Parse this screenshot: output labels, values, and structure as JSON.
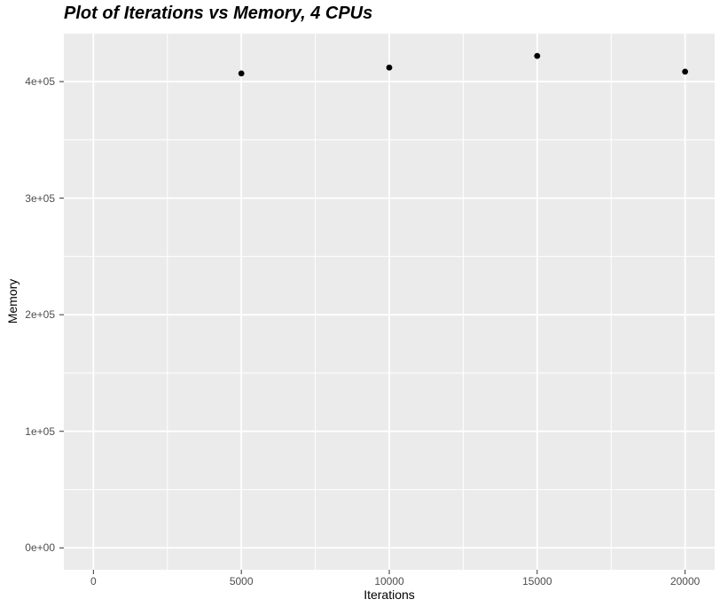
{
  "chart_data": {
    "type": "scatter",
    "title": "Plot of Iterations vs Memory, 4 CPUs",
    "xlabel": "Iterations",
    "ylabel": "Memory",
    "x": [
      5000,
      10000,
      15000,
      20000
    ],
    "y": [
      407000,
      412000,
      422000,
      408500
    ],
    "x_ticks": [
      0,
      5000,
      10000,
      15000,
      20000
    ],
    "x_tick_labels": [
      "0",
      "5000",
      "10000",
      "15000",
      "20000"
    ],
    "y_ticks": [
      0,
      100000,
      200000,
      300000,
      400000
    ],
    "y_tick_labels": [
      "0e+00",
      "1e+05",
      "2e+05",
      "3e+05",
      "4e+05"
    ],
    "x_minor_ticks": [
      2500,
      7500,
      12500,
      17500
    ],
    "y_minor_ticks": [
      50000,
      150000,
      250000,
      350000
    ],
    "xlim": [
      -1000,
      21000
    ],
    "ylim": [
      -18800,
      441100
    ],
    "grid": true,
    "legend": "none",
    "colors": {
      "panel_background": "#EBEBEB",
      "gridline": "#FFFFFF",
      "point": "#000000",
      "tick_mark": "#333333",
      "axis_text": "#4D4D4D",
      "title_text": "#000000"
    }
  }
}
